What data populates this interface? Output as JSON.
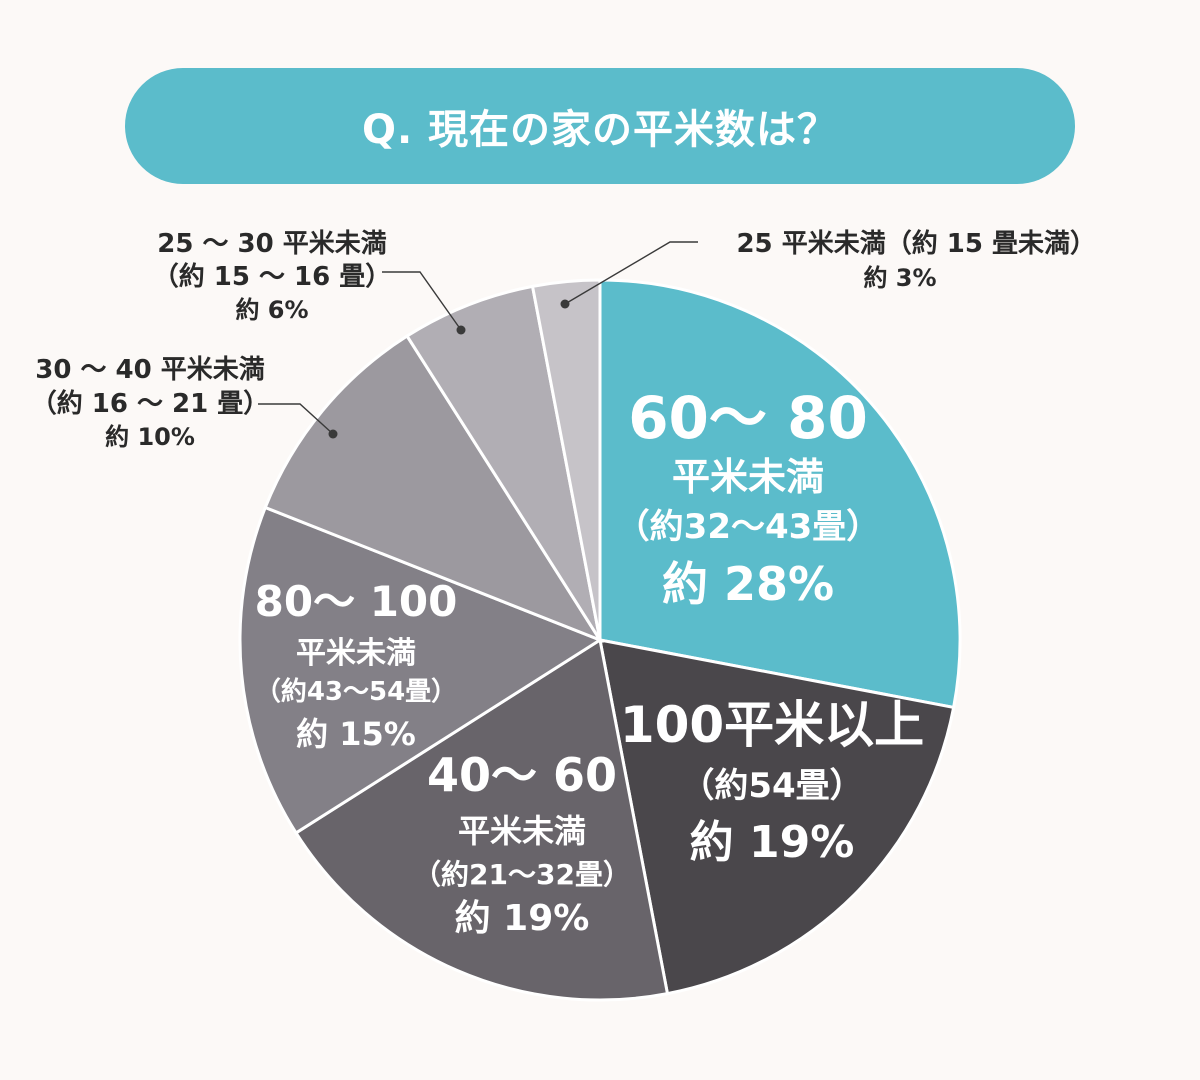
{
  "title": "Q. 現在の家の平米数は？",
  "chart_data": {
    "type": "pie",
    "title": "Q. 現在の家の平米数は？",
    "slices": [
      {
        "label": "60～ 80 平米未満（約32～43畳）",
        "lines": [
          "60～ 80",
          "平米未満",
          "（約32～43畳）",
          "約 28%"
        ],
        "value": 28,
        "color": "#5bbccb"
      },
      {
        "label": "100平米以上（約54畳）",
        "lines": [
          "100平米以上",
          "（約54畳）",
          "約 19%"
        ],
        "value": 19,
        "color": "#4a474b"
      },
      {
        "label": "40～ 60 平米未満（約21～32畳）",
        "lines": [
          "40～ 60",
          "平米未満",
          "（約21～32畳）",
          "約 19%"
        ],
        "value": 19,
        "color": "#68646a"
      },
      {
        "label": "80～ 100 平米未満（約43～54畳）",
        "lines": [
          "80～ 100",
          "平米未満",
          "（約43～54畳）",
          "約 15%"
        ],
        "value": 15,
        "color": "#838087"
      },
      {
        "label": "30 ～ 40 平米未満（約 16 ～ 21 畳）",
        "lines": [
          "30 ～ 40 平米未満",
          "（約 16 ～ 21 畳）",
          "約 10%"
        ],
        "value": 10,
        "color": "#9c999f"
      },
      {
        "label": "25 ～ 30 平米未満（約 15 ～ 16 畳）",
        "lines": [
          "25 ～ 30 平米未満",
          "（約 15 ～ 16 畳）",
          "約 6%"
        ],
        "value": 6,
        "color": "#b1aeb4"
      },
      {
        "label": "25 平米未満（約 15 畳未満）",
        "lines": [
          "25 平米未満（約 15 畳未満）",
          "約 3%"
        ],
        "value": 3,
        "color": "#c6c3c8"
      }
    ]
  }
}
